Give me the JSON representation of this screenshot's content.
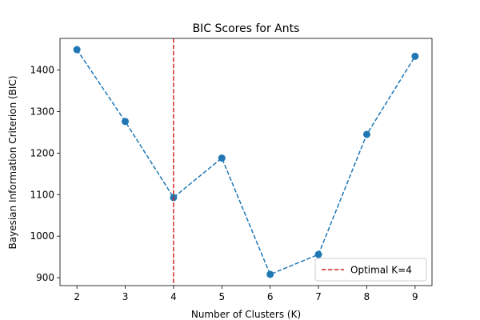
{
  "chart_data": {
    "type": "line",
    "title": "BIC Scores for Ants",
    "xlabel": "Number of Clusters (K)",
    "ylabel": "Bayesian Information Criterion (BIC)",
    "x": [
      2,
      3,
      4,
      5,
      6,
      7,
      8,
      9
    ],
    "series": [
      {
        "values": [
          1449,
          1276,
          1093,
          1188,
          908,
          956,
          1245,
          1433
        ],
        "color": "#1f77b4",
        "linestyle": "dashed",
        "marker": "circle"
      }
    ],
    "xticks": [
      2,
      3,
      4,
      5,
      6,
      7,
      8,
      9
    ],
    "yticks": [
      900,
      1000,
      1100,
      1200,
      1300,
      1400
    ],
    "xlim": [
      1.65,
      9.35
    ],
    "ylim": [
      881,
      1476
    ],
    "grid": false,
    "annotations": [
      {
        "type": "vline",
        "x": 4,
        "color": "#d62728",
        "linestyle": "dashed",
        "label": "Optimal K=4"
      }
    ],
    "legend": {
      "position": "bottom-right",
      "entries": [
        "Optimal K=4"
      ]
    }
  }
}
